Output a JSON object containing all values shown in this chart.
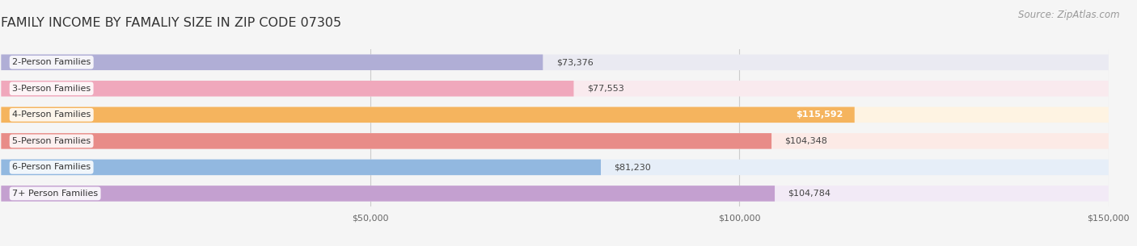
{
  "title": "FAMILY INCOME BY FAMALIY SIZE IN ZIP CODE 07305",
  "source": "Source: ZipAtlas.com",
  "categories": [
    "2-Person Families",
    "3-Person Families",
    "4-Person Families",
    "5-Person Families",
    "6-Person Families",
    "7+ Person Families"
  ],
  "values": [
    73376,
    77553,
    115592,
    104348,
    81230,
    104784
  ],
  "bar_colors": [
    "#b0aed6",
    "#f0a8bc",
    "#f5b45e",
    "#e88c88",
    "#92b8e0",
    "#c4a0d0"
  ],
  "bar_bg_colors": [
    "#eaeaf2",
    "#f9eaee",
    "#fef3e2",
    "#fceae6",
    "#e6eef8",
    "#f2eaf6"
  ],
  "label_colors": [
    "#555555",
    "#555555",
    "#ffffff",
    "#555555",
    "#555555",
    "#555555"
  ],
  "value_labels": [
    "$73,376",
    "$77,553",
    "$115,592",
    "$104,348",
    "$81,230",
    "$104,784"
  ],
  "xlim": [
    0,
    150000
  ],
  "xticks": [
    0,
    50000,
    100000,
    150000
  ],
  "xtick_labels": [
    "",
    "$50,000",
    "$100,000",
    "$150,000"
  ],
  "background_color": "#f5f5f5",
  "bar_height": 0.6,
  "title_fontsize": 11.5,
  "label_fontsize": 8.0,
  "value_fontsize": 8.0,
  "source_fontsize": 8.5
}
